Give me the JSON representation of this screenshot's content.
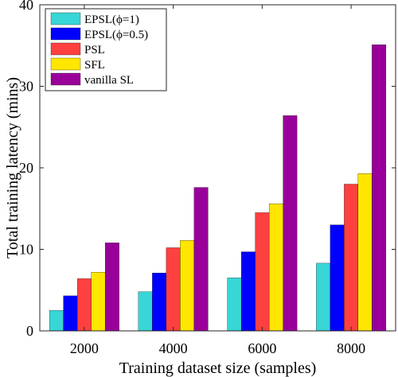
{
  "chart_data": {
    "type": "bar",
    "xlabel": "Training dataset size (samples)",
    "ylabel": "Total training latency (mins)",
    "ylim": [
      0,
      40
    ],
    "yticks": [
      0,
      10,
      20,
      30,
      40
    ],
    "categories": [
      "2000",
      "4000",
      "6000",
      "8000"
    ],
    "grid": false,
    "legend_position": "top-left",
    "series": [
      {
        "name": "EPSL(ϕ=1)",
        "color": "#38d6d6",
        "values": [
          2.5,
          4.8,
          6.5,
          8.3
        ]
      },
      {
        "name": "EPSL(ϕ=0.5)",
        "color": "#0000ff",
        "values": [
          4.3,
          7.1,
          9.7,
          13.0
        ]
      },
      {
        "name": "PSL",
        "color": "#ff4040",
        "values": [
          6.4,
          10.2,
          14.5,
          18.0
        ]
      },
      {
        "name": "SFL",
        "color": "#ffe600",
        "values": [
          7.2,
          11.1,
          15.6,
          19.3
        ]
      },
      {
        "name": "vanilla SL",
        "color": "#990099",
        "values": [
          10.8,
          17.6,
          26.4,
          35.1
        ]
      }
    ]
  }
}
